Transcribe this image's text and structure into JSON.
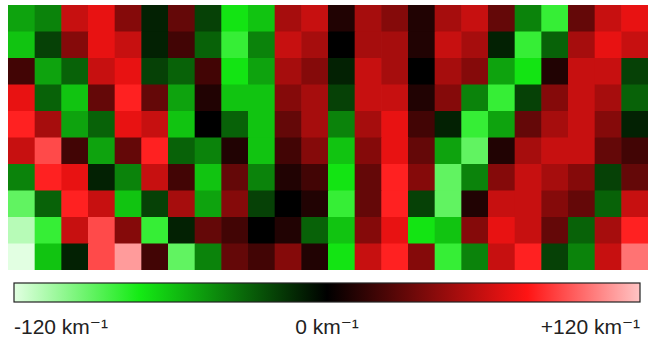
{
  "chart_data": {
    "type": "heatmap",
    "tick_labels": false,
    "cells": [
      [
        -50,
        -40,
        60,
        70,
        40,
        -10,
        30,
        -20,
        -70,
        -60,
        50,
        60,
        10,
        50,
        40,
        10,
        50,
        60,
        30,
        -40,
        -80,
        30,
        60,
        70
      ],
      [
        -60,
        -20,
        40,
        70,
        60,
        -10,
        20,
        -30,
        -80,
        -40,
        60,
        50,
        0,
        50,
        50,
        10,
        60,
        50,
        -10,
        -80,
        -30,
        50,
        70,
        60
      ],
      [
        20,
        -50,
        -30,
        60,
        70,
        -20,
        -30,
        20,
        -70,
        -50,
        50,
        40,
        -10,
        60,
        50,
        0,
        50,
        40,
        -50,
        -70,
        10,
        60,
        60,
        -20
      ],
      [
        70,
        -30,
        -60,
        30,
        80,
        30,
        -50,
        10,
        -60,
        -60,
        40,
        50,
        -20,
        60,
        60,
        10,
        40,
        -40,
        -80,
        -20,
        40,
        60,
        50,
        -30
      ],
      [
        80,
        50,
        -50,
        -30,
        70,
        60,
        -60,
        0,
        -30,
        -60,
        30,
        50,
        -40,
        50,
        70,
        20,
        -10,
        -80,
        -50,
        30,
        50,
        60,
        40,
        -10
      ],
      [
        60,
        90,
        20,
        -50,
        30,
        80,
        -30,
        -40,
        10,
        -60,
        20,
        40,
        -60,
        40,
        70,
        30,
        -50,
        -90,
        10,
        50,
        60,
        60,
        30,
        20
      ],
      [
        -40,
        80,
        70,
        -10,
        -40,
        60,
        20,
        -60,
        30,
        -40,
        10,
        20,
        -70,
        30,
        80,
        40,
        -90,
        -40,
        40,
        60,
        50,
        40,
        -20,
        30
      ],
      [
        -90,
        -30,
        80,
        60,
        -60,
        -20,
        50,
        -50,
        40,
        -20,
        0,
        10,
        -80,
        30,
        80,
        -20,
        -90,
        10,
        60,
        60,
        40,
        30,
        -30,
        60
      ],
      [
        -110,
        -80,
        60,
        90,
        40,
        -80,
        -10,
        30,
        20,
        0,
        10,
        -30,
        -60,
        40,
        70,
        -70,
        -60,
        40,
        70,
        60,
        30,
        -30,
        50,
        80
      ],
      [
        -120,
        -60,
        -10,
        90,
        110,
        20,
        -90,
        -40,
        30,
        20,
        40,
        10,
        -70,
        60,
        80,
        40,
        -80,
        -40,
        60,
        80,
        -20,
        -40,
        60,
        100
      ]
    ],
    "colorbar": {
      "range": [
        -120,
        120
      ],
      "ticks": [
        {
          "value": -120,
          "label": "-120 km⁻¹"
        },
        {
          "value": 0,
          "label": "0 km⁻¹"
        },
        {
          "value": 120,
          "label": "+120 km⁻¹"
        }
      ]
    }
  }
}
